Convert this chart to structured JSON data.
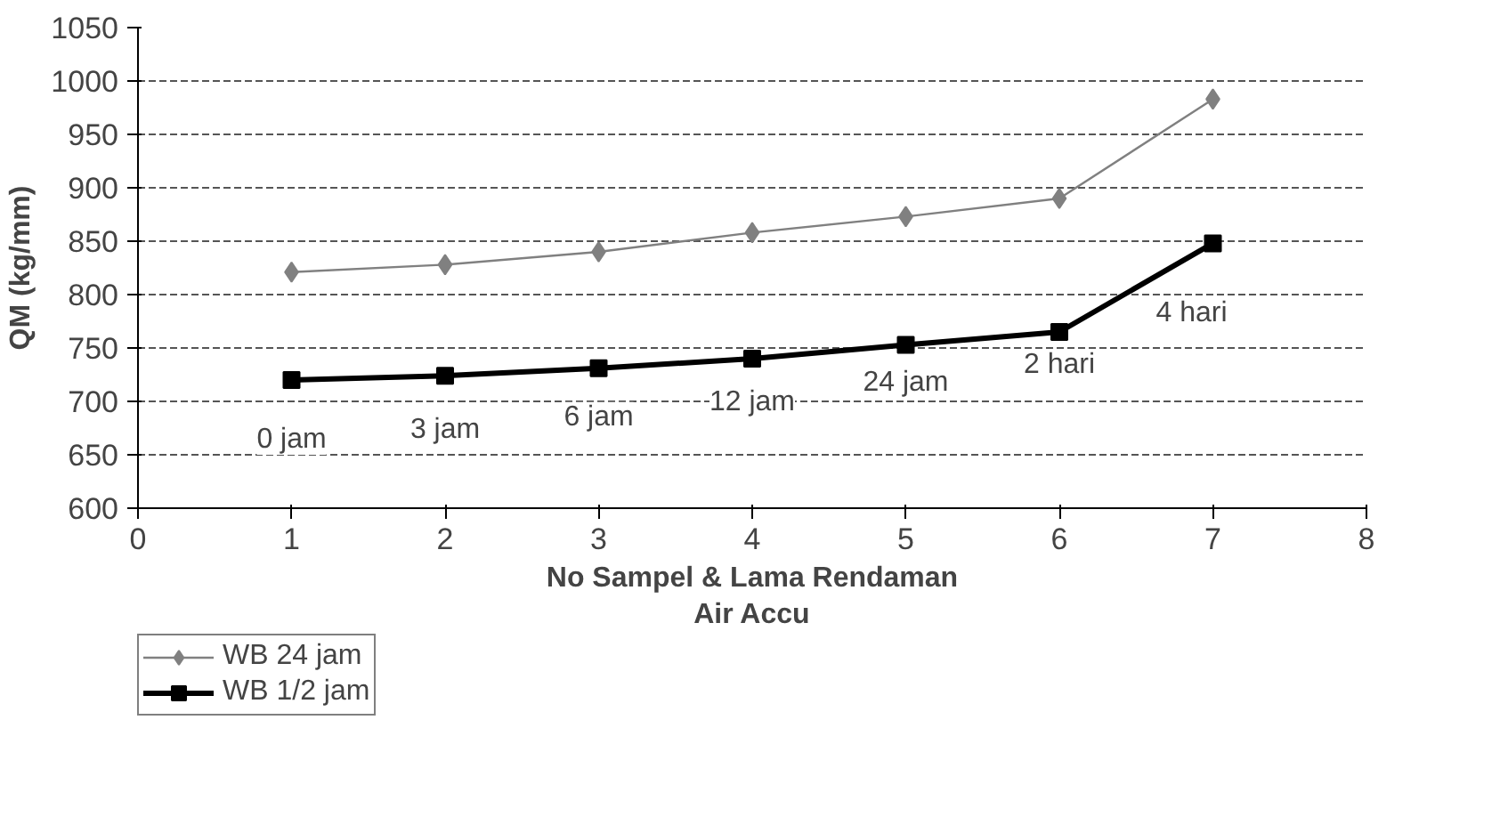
{
  "chart_data": {
    "type": "line",
    "xlabel": "No Sampel & Lama Rendaman\nAir Accu",
    "ylabel": "QM (kg/mm)",
    "x": [
      1,
      2,
      3,
      4,
      5,
      6,
      7
    ],
    "series": [
      {
        "name": "WB 24 jam",
        "color": "#808080",
        "marker": "diamond",
        "values": [
          821,
          828,
          840,
          858,
          873,
          890,
          983
        ]
      },
      {
        "name": "WB 1/2 jam",
        "color": "#000000",
        "marker": "square",
        "values": [
          720,
          724,
          731,
          740,
          753,
          765,
          848
        ]
      }
    ],
    "xlim": [
      0,
      8
    ],
    "xticks": [
      0,
      1,
      2,
      3,
      4,
      5,
      6,
      7,
      8
    ],
    "ylim": [
      600,
      1050
    ],
    "yticks": [
      600,
      650,
      700,
      750,
      800,
      850,
      900,
      950,
      1000,
      1050
    ],
    "grid": "y",
    "legend": "bottom left",
    "annotations": [
      "0 jam",
      "3 jam",
      "6 jam",
      "12 jam",
      "24 jam",
      "2 hari",
      "4 hari"
    ]
  }
}
